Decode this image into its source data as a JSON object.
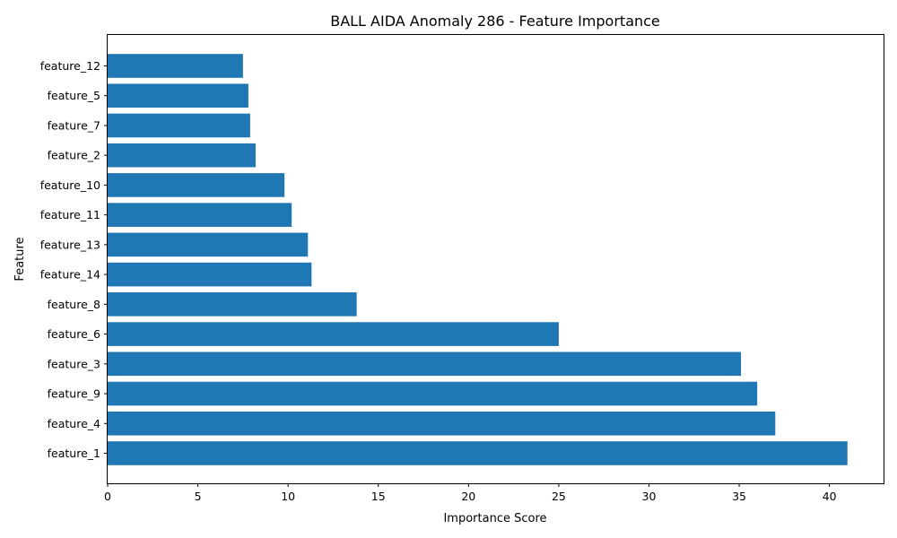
{
  "chart_data": {
    "type": "bar",
    "orientation": "horizontal",
    "title": "BALL AIDA Anomaly 286 - Feature Importance",
    "xlabel": "Importance Score",
    "ylabel": "Feature",
    "categories": [
      "feature_1",
      "feature_4",
      "feature_9",
      "feature_3",
      "feature_6",
      "feature_8",
      "feature_14",
      "feature_13",
      "feature_11",
      "feature_10",
      "feature_2",
      "feature_7",
      "feature_5",
      "feature_12"
    ],
    "values": [
      41.0,
      37.0,
      36.0,
      35.1,
      25.0,
      13.8,
      11.3,
      11.1,
      10.2,
      9.8,
      8.2,
      7.9,
      7.8,
      7.5
    ],
    "xlim": [
      0,
      43
    ],
    "xticks": [
      0,
      5,
      10,
      15,
      20,
      25,
      30,
      35,
      40
    ],
    "grid": false,
    "bar_color": "#1f77b4"
  }
}
